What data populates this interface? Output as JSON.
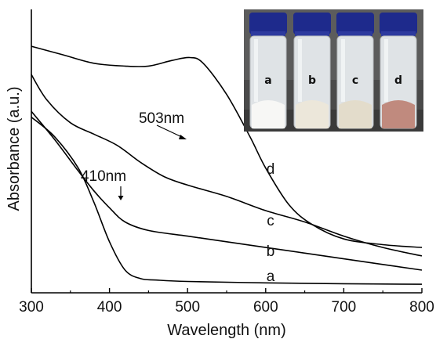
{
  "chart_data": {
    "type": "line",
    "xlabel": "Wavelength (nm)",
    "ylabel": "Absorbance (a.u.)",
    "xlim": [
      300,
      800
    ],
    "ylim": [
      0,
      1
    ],
    "xticks": [
      "300",
      "400",
      "500",
      "600",
      "700",
      "800"
    ],
    "grid": false,
    "series": [
      {
        "name": "a",
        "color": "#000000",
        "points": [
          [
            300,
            0.62
          ],
          [
            330,
            0.55
          ],
          [
            360,
            0.44
          ],
          [
            380,
            0.32
          ],
          [
            400,
            0.18
          ],
          [
            420,
            0.08
          ],
          [
            440,
            0.05
          ],
          [
            460,
            0.045
          ],
          [
            500,
            0.04
          ],
          [
            600,
            0.035
          ],
          [
            700,
            0.032
          ],
          [
            800,
            0.03
          ]
        ]
      },
      {
        "name": "b",
        "color": "#000000",
        "points": [
          [
            300,
            0.64
          ],
          [
            330,
            0.54
          ],
          [
            360,
            0.43
          ],
          [
            380,
            0.36
          ],
          [
            400,
            0.3
          ],
          [
            420,
            0.25
          ],
          [
            450,
            0.22
          ],
          [
            500,
            0.2
          ],
          [
            550,
            0.18
          ],
          [
            600,
            0.16
          ],
          [
            650,
            0.14
          ],
          [
            700,
            0.12
          ],
          [
            750,
            0.1
          ],
          [
            800,
            0.08
          ]
        ]
      },
      {
        "name": "c",
        "color": "#000000",
        "points": [
          [
            300,
            0.77
          ],
          [
            320,
            0.68
          ],
          [
            350,
            0.6
          ],
          [
            380,
            0.56
          ],
          [
            410,
            0.52
          ],
          [
            440,
            0.46
          ],
          [
            470,
            0.41
          ],
          [
            500,
            0.38
          ],
          [
            550,
            0.34
          ],
          [
            600,
            0.29
          ],
          [
            650,
            0.25
          ],
          [
            700,
            0.2
          ],
          [
            750,
            0.16
          ],
          [
            800,
            0.13
          ]
        ]
      },
      {
        "name": "d",
        "color": "#000000",
        "points": [
          [
            300,
            0.87
          ],
          [
            340,
            0.84
          ],
          [
            380,
            0.81
          ],
          [
            420,
            0.8
          ],
          [
            450,
            0.8
          ],
          [
            480,
            0.82
          ],
          [
            503,
            0.83
          ],
          [
            520,
            0.81
          ],
          [
            550,
            0.7
          ],
          [
            580,
            0.55
          ],
          [
            600,
            0.44
          ],
          [
            630,
            0.31
          ],
          [
            660,
            0.24
          ],
          [
            700,
            0.19
          ],
          [
            750,
            0.17
          ],
          [
            800,
            0.16
          ]
        ]
      }
    ],
    "annotations": [
      {
        "text": "410nm",
        "x": 410,
        "y": 0.52
      },
      {
        "text": "503nm",
        "x": 503,
        "y": 0.83
      }
    ],
    "inset": {
      "vials": [
        {
          "label": "a",
          "powder_color": "#f7f7f5"
        },
        {
          "label": "b",
          "powder_color": "#ece7da"
        },
        {
          "label": "c",
          "powder_color": "#e3dccb"
        },
        {
          "label": "d",
          "powder_color": "#c08a7e"
        }
      ]
    }
  }
}
